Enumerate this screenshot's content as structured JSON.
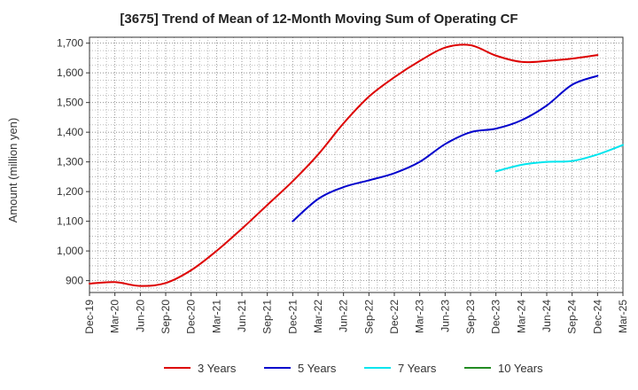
{
  "chart_data": {
    "type": "line",
    "title": "[3675]  Trend of Mean of 12-Month Moving Sum of Operating CF",
    "xlabel": "",
    "ylabel": "Amount (million yen)",
    "ylim": [
      860,
      1720
    ],
    "yticks": [
      900,
      1000,
      1100,
      1200,
      1300,
      1400,
      1500,
      1600,
      1700
    ],
    "ytick_labels": [
      "900",
      "1,000",
      "1,100",
      "1,200",
      "1,300",
      "1,400",
      "1,500",
      "1,600",
      "1,700"
    ],
    "x_categories": [
      "Dec-19",
      "Mar-20",
      "Jun-20",
      "Sep-20",
      "Dec-20",
      "Mar-21",
      "Jun-21",
      "Sep-21",
      "Dec-21",
      "Mar-22",
      "Jun-22",
      "Sep-22",
      "Dec-22",
      "Mar-23",
      "Jun-23",
      "Sep-23",
      "Dec-23",
      "Mar-24",
      "Jun-24",
      "Sep-24",
      "Dec-24",
      "Mar-25"
    ],
    "grid": true,
    "legend_position": "bottom",
    "series": [
      {
        "name": "3 Years",
        "color": "#dd0000",
        "start_index": 0,
        "values": [
          890,
          895,
          882,
          892,
          935,
          1000,
          1075,
          1155,
          1235,
          1325,
          1430,
          1520,
          1585,
          1640,
          1685,
          1693,
          1658,
          1637,
          1640,
          1648,
          1660
        ]
      },
      {
        "name": "5 Years",
        "color": "#0000cc",
        "start_index": 8,
        "values": [
          1100,
          1175,
          1215,
          1238,
          1262,
          1300,
          1360,
          1400,
          1412,
          1440,
          1490,
          1560,
          1590
        ]
      },
      {
        "name": "7 Years",
        "color": "#00e5ee",
        "start_index": 16,
        "values": [
          1268,
          1290,
          1300,
          1303,
          1325,
          1357
        ]
      },
      {
        "name": "10 Years",
        "color": "#228b22",
        "start_index": 21,
        "values": []
      }
    ]
  }
}
